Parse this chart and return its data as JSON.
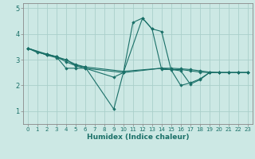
{
  "xlabel": "Humidex (Indice chaleur)",
  "background_color": "#cce8e4",
  "grid_color": "#aacfca",
  "line_color": "#1a7068",
  "xlim": [
    -0.5,
    23.5
  ],
  "ylim": [
    0.5,
    5.2
  ],
  "yticks": [
    1,
    2,
    3,
    4,
    5
  ],
  "xticks": [
    0,
    1,
    2,
    3,
    4,
    5,
    6,
    7,
    8,
    9,
    10,
    11,
    12,
    13,
    14,
    15,
    16,
    17,
    18,
    19,
    20,
    21,
    22,
    23
  ],
  "lines": [
    {
      "x": [
        0,
        1,
        2,
        3,
        4,
        5,
        6,
        10,
        11,
        12,
        13,
        14,
        15,
        16,
        17,
        18,
        19,
        20,
        21,
        22,
        23
      ],
      "y": [
        3.45,
        3.28,
        3.22,
        3.12,
        2.67,
        2.67,
        2.67,
        2.5,
        4.45,
        4.62,
        4.2,
        4.1,
        2.6,
        2.0,
        2.1,
        2.25,
        2.5,
        2.5,
        2.5,
        2.5,
        2.5
      ]
    },
    {
      "x": [
        0,
        2,
        3,
        4,
        5,
        6,
        10,
        14,
        15,
        16,
        17,
        18,
        19,
        20,
        21,
        22,
        23
      ],
      "y": [
        3.45,
        3.18,
        3.08,
        3.0,
        2.78,
        2.72,
        2.55,
        2.67,
        2.67,
        2.65,
        2.62,
        2.57,
        2.52,
        2.5,
        2.5,
        2.5,
        2.5
      ]
    },
    {
      "x": [
        0,
        2,
        3,
        4,
        5,
        6,
        9,
        10,
        14,
        15,
        16,
        17,
        18,
        19,
        20,
        21,
        22,
        23
      ],
      "y": [
        3.45,
        3.22,
        3.12,
        3.0,
        2.82,
        2.72,
        1.08,
        2.5,
        2.67,
        2.62,
        2.62,
        2.57,
        2.52,
        2.5,
        2.5,
        2.5,
        2.5,
        2.5
      ]
    },
    {
      "x": [
        0,
        2,
        3,
        4,
        5,
        6,
        9,
        10,
        12,
        13,
        14,
        15,
        16,
        17,
        18,
        19,
        20,
        21,
        22,
        23
      ],
      "y": [
        3.45,
        3.18,
        3.12,
        2.92,
        2.77,
        2.67,
        2.32,
        2.5,
        4.62,
        4.2,
        2.62,
        2.62,
        2.57,
        2.05,
        2.22,
        2.5,
        2.5,
        2.5,
        2.5,
        2.5
      ]
    }
  ]
}
